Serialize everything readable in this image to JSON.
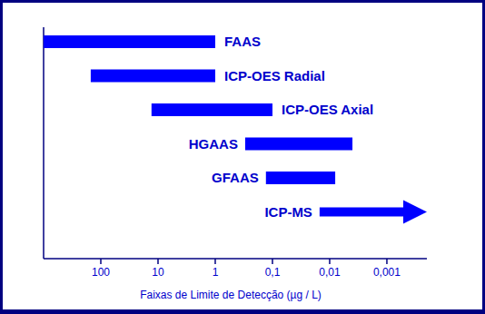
{
  "chart_data": {
    "type": "range_bar",
    "orientation": "horizontal",
    "log": "x",
    "x_label": "Faixas de Limite de Detecção (µg / L)",
    "categories": [
      "FAAS",
      "ICP-OES Radial",
      "ICP-OES Axial",
      "HGAAS",
      "GFAAS",
      "ICP-MS"
    ],
    "values": [
      [
        1000,
        1
      ],
      [
        150,
        1
      ],
      [
        13,
        0.1
      ],
      [
        0.3,
        0.004
      ],
      [
        0.13,
        0.008
      ],
      [
        0.015,
        null
      ]
    ],
    "color": "#0000ff",
    "xlim": [
      1000,
      0.0002
    ],
    "xticks": [
      100,
      10,
      1,
      {
        "value": 0.1,
        "label": "0,1"
      },
      {
        "value": 0.01,
        "label": "0,01"
      },
      {
        "value": 0.001,
        "label": "0,001"
      }
    ],
    "grid": false
  }
}
